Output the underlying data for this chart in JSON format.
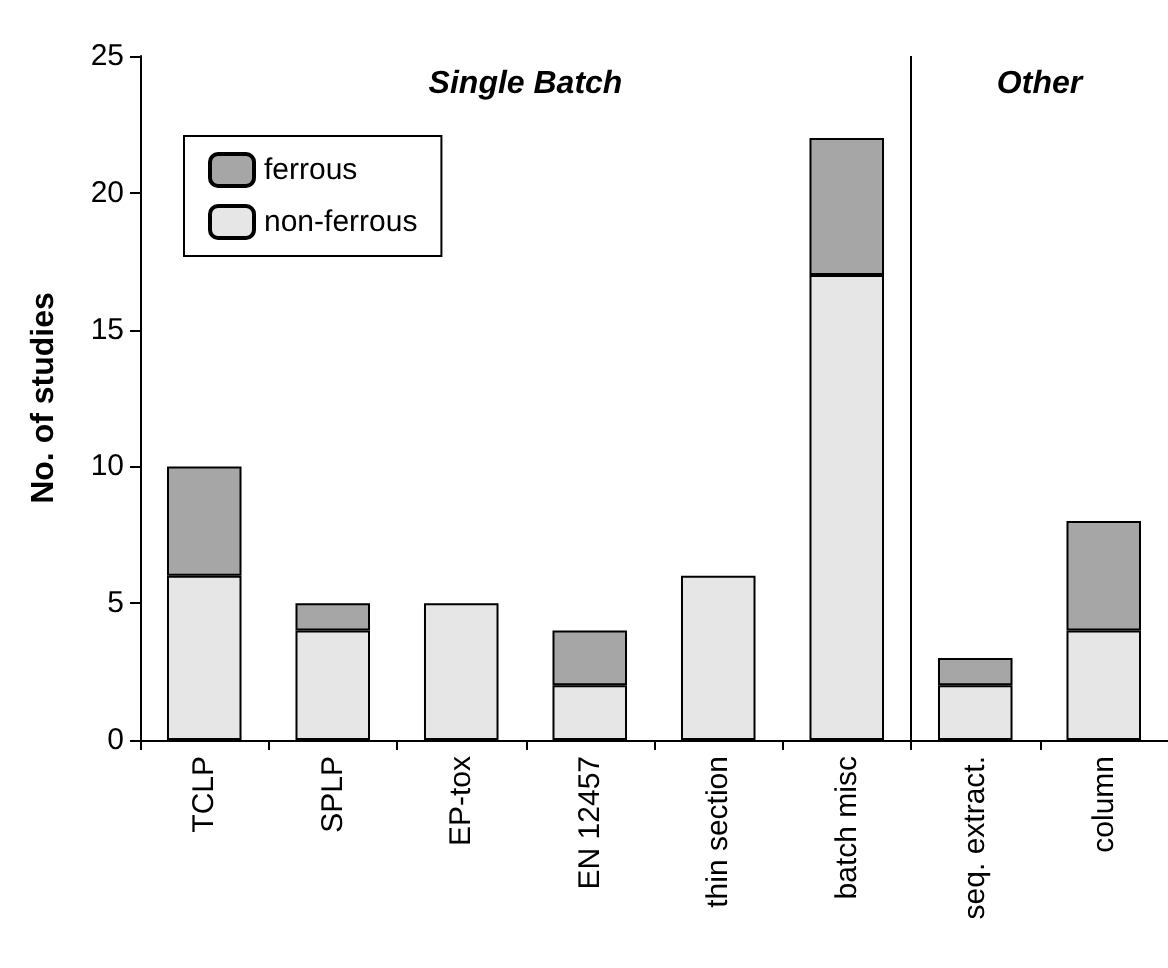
{
  "chart_data": {
    "type": "bar",
    "ylabel": "No. of studies",
    "stacked": true,
    "categories": [
      "TCLP",
      "SPLP",
      "EP-tox",
      "EN 12457",
      "thin section",
      "batch misc",
      "seq. extract.",
      "column"
    ],
    "series": [
      {
        "name": "non-ferrous",
        "color": "#e6e6e6",
        "values": [
          6,
          4,
          5,
          2,
          6,
          17,
          2,
          4
        ]
      },
      {
        "name": "ferrous",
        "color": "#a6a6a6",
        "values": [
          4,
          1,
          0,
          2,
          0,
          5,
          1,
          4
        ]
      }
    ],
    "ylim": [
      0,
      25
    ],
    "yticks": [
      0,
      5,
      10,
      15,
      20,
      25
    ],
    "grid": false,
    "legend": "top left",
    "annotations": [
      "Single Batch",
      "Other"
    ]
  }
}
